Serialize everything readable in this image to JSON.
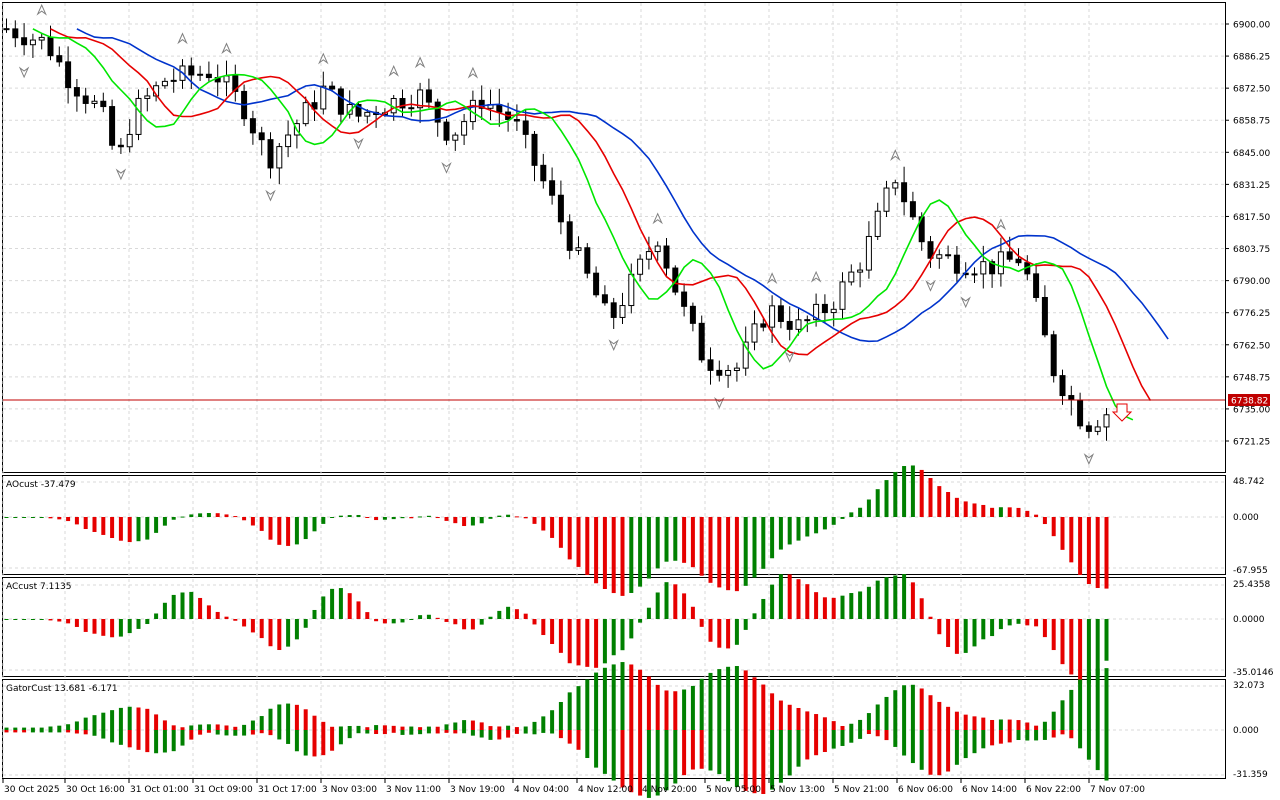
{
  "colors": {
    "background": "#ffffff",
    "grid": "#d9d9d9",
    "frame": "#000000",
    "candle_bull": "#ffffff",
    "candle_bear": "#000000",
    "alligator_lips": "#00e600",
    "alligator_teeth": "#e60000",
    "alligator_jaw": "#0033cc",
    "bar_up": "#008000",
    "bar_down": "#e60000",
    "price_line": "#c00000",
    "fractal": "#808080"
  },
  "main": {
    "price_axis": [
      "6900.00",
      "6886.25",
      "6872.50",
      "6858.75",
      "6845.00",
      "6831.25",
      "6817.50",
      "6803.75",
      "6790.00",
      "6776.25",
      "6762.50",
      "6748.75",
      "6735.00",
      "6721.25"
    ],
    "current_price": "6738.82",
    "range": [
      6713,
      6914
    ]
  },
  "panels": [
    {
      "id": "ao",
      "label": "AOcust -37.479",
      "ticks": [
        "48.742",
        "0.000",
        "-67.955"
      ],
      "range": [
        -67.955,
        48.742
      ]
    },
    {
      "id": "ac",
      "label": "ACcust 7.1135",
      "ticks": [
        "25.4358",
        "0.0000",
        "-35.0146"
      ],
      "range": [
        -35.0146,
        25.4358
      ]
    },
    {
      "id": "gator",
      "label": "GatorCust 13.681 -6.171",
      "ticks": [
        "32.073",
        "0.000",
        "-31.359"
      ],
      "range": [
        -31.359,
        32.073
      ]
    }
  ],
  "time_axis": [
    "30 Oct 2025",
    "30 Oct 16:00",
    "31 Oct 01:00",
    "31 Oct 09:00",
    "31 Oct 17:00",
    "3 Nov 03:00",
    "3 Nov 11:00",
    "3 Nov 19:00",
    "4 Nov 04:00",
    "4 Nov 12:00",
    "4 Nov 20:00",
    "5 Nov 05:00",
    "5 Nov 13:00",
    "5 Nov 21:00",
    "6 Nov 06:00",
    "6 Nov 14:00",
    "6 Nov 22:00",
    "7 Nov 07:00"
  ]
}
